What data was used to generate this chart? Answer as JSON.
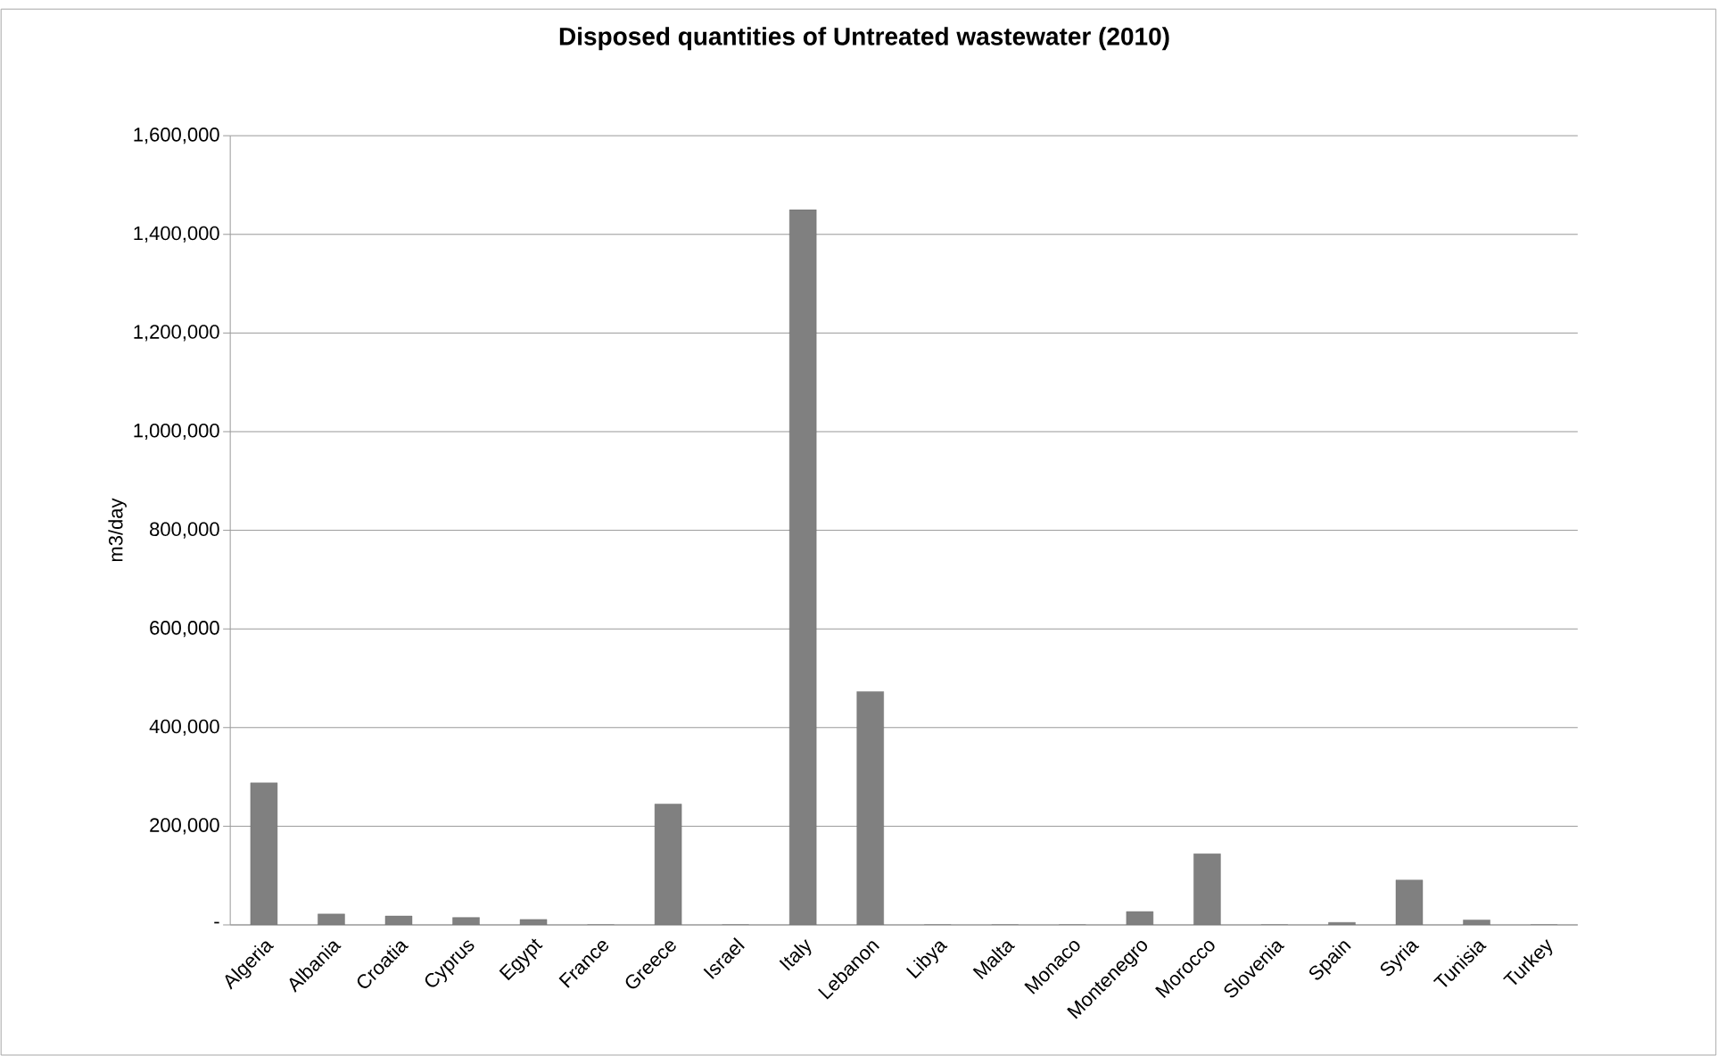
{
  "chart_data": {
    "type": "bar",
    "title": "Disposed quantities of Untreated wastewater (2010)",
    "ylabel": "m3/day",
    "categories": [
      "Algeria",
      "Albania",
      "Croatia",
      "Cyprus",
      "Egypt",
      "France",
      "Greece",
      "Israel",
      "Italy",
      "Lebanon",
      "Libya",
      "Malta",
      "Monaco",
      "Montenegro",
      "Morocco",
      "Slovenia",
      "Spain",
      "Syria",
      "Tunisia",
      "Turkey"
    ],
    "values": [
      288000,
      22000,
      18000,
      15000,
      11000,
      0,
      245000,
      0,
      1450000,
      473000,
      0,
      0,
      0,
      27000,
      144000,
      0,
      5000,
      91000,
      10000,
      0
    ],
    "color": "#808080",
    "ylim": [
      0,
      1600000
    ],
    "yticks": [
      {
        "value": 0,
        "label": "-"
      },
      {
        "value": 200000,
        "label": "200,000"
      },
      {
        "value": 400000,
        "label": "400,000"
      },
      {
        "value": 600000,
        "label": "600,000"
      },
      {
        "value": 800000,
        "label": "800,000"
      },
      {
        "value": 1000000,
        "label": "1,000,000"
      },
      {
        "value": 1200000,
        "label": "1,200,000"
      },
      {
        "value": 1400000,
        "label": "1,400,000"
      },
      {
        "value": 1600000,
        "label": "1,600,000"
      }
    ],
    "grid": "y"
  }
}
